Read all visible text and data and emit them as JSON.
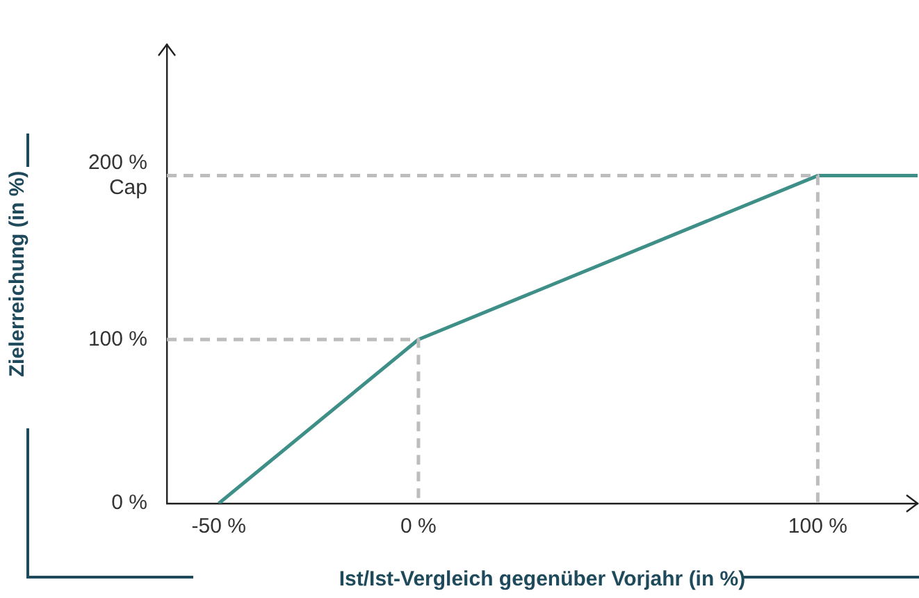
{
  "chart_data": {
    "type": "line",
    "xlabel": "Ist/Ist-Vergleich gegenüber Vorjahr (in %)",
    "ylabel": "Zielerreichung (in %)",
    "xlim": [
      -63,
      125
    ],
    "ylim": [
      0,
      280
    ],
    "xticks": [
      {
        "value": -50,
        "label": "-50 %"
      },
      {
        "value": 0,
        "label": "0 %"
      },
      {
        "value": 100,
        "label": "100 %"
      }
    ],
    "yticks": [
      {
        "value": 0,
        "label": "0 %"
      },
      {
        "value": 100,
        "label": "100 %"
      },
      {
        "value": 200,
        "label": "200 %\nCap"
      }
    ],
    "grid": false,
    "legend": false,
    "marker": "none",
    "series": [
      {
        "color": "#bdbdbd",
        "line_style": "dashed",
        "x": [
          -63,
          0,
          0
        ],
        "values": [
          100,
          100,
          0
        ]
      },
      {
        "color": "#bdbdbd",
        "line_style": "dashed",
        "x": [
          -63,
          100,
          100
        ],
        "values": [
          200,
          200,
          0
        ]
      },
      {
        "color": "#3d8f87",
        "line_style": "solid",
        "x": [
          -50,
          0,
          100,
          125
        ],
        "values": [
          0,
          100,
          200,
          200
        ]
      }
    ]
  }
}
